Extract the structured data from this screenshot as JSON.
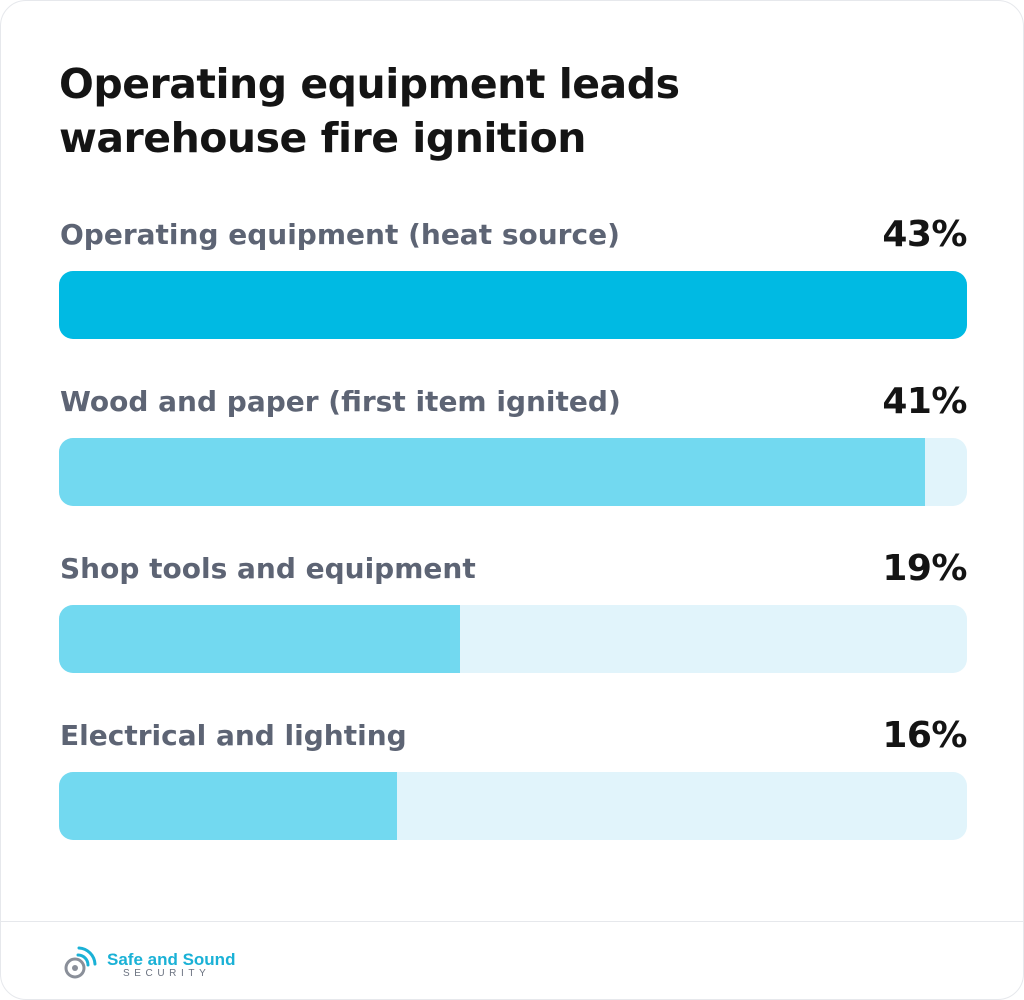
{
  "title_lines": [
    "Operating equipment leads",
    "warehouse fire ignition"
  ],
  "chart_data": {
    "type": "bar",
    "orientation": "horizontal",
    "categories": [
      "Operating equipment (heat source)",
      "Wood and paper (first item ignited)",
      "Shop tools and equipment",
      "Electrical and lighting"
    ],
    "values": [
      43,
      41,
      19,
      16
    ],
    "value_labels": [
      "43%",
      "41%",
      "19%",
      "16%"
    ],
    "unit": "%",
    "xlim": [
      0,
      43
    ],
    "grid": false,
    "legend": "none",
    "colors": {
      "lead_bar": "#00bae3",
      "bar": "#72d9f0",
      "track": "#e1f4fb",
      "label": "#5d6474",
      "value": "#141414"
    }
  },
  "logo": {
    "name": "Safe and Sound",
    "tagline": "SECURITY",
    "icon": "wifi-signal-icon",
    "color": "#1ab1d6"
  }
}
